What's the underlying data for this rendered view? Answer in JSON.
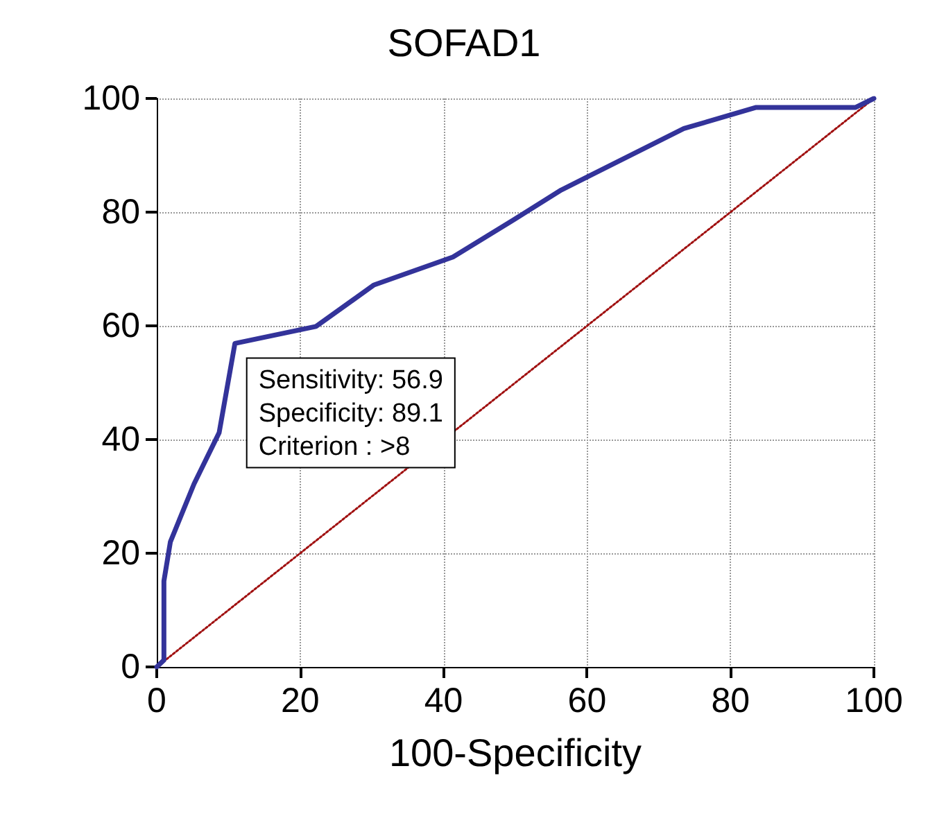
{
  "chart_data": {
    "type": "line",
    "title": "SOFAD1",
    "xlabel": "100-Specificity",
    "xlim": [
      0,
      100
    ],
    "xticks": [
      0,
      20,
      40,
      60,
      80,
      100
    ],
    "ylim": [
      0,
      100
    ],
    "yticks": [
      0,
      20,
      40,
      60,
      80,
      100
    ],
    "grid": true,
    "marker": "none",
    "series": [
      {
        "color": "#33339a",
        "line_style": "solid",
        "x": [
          0,
          1,
          1,
          1.9,
          5.2,
          8.7,
          10.9,
          22.2,
          30.3,
          41.3,
          49.7,
          56.4,
          73.5,
          83.5,
          97.4,
          100
        ],
        "values": [
          0,
          1.2,
          15.1,
          22,
          32.2,
          41.2,
          56.9,
          59.9,
          67.2,
          72.1,
          78.6,
          83.9,
          94.7,
          98.4,
          98.4,
          100
        ]
      },
      {
        "color": "#a01010",
        "line_style": "dotted",
        "x": [
          0,
          100
        ],
        "values": [
          0,
          100
        ]
      }
    ],
    "annotations": [
      {
        "text": "Sensitivity: 56.9\nSpecificity: 89.1\nCriterion : >8",
        "x": 10.9,
        "y": 56.9
      }
    ]
  }
}
